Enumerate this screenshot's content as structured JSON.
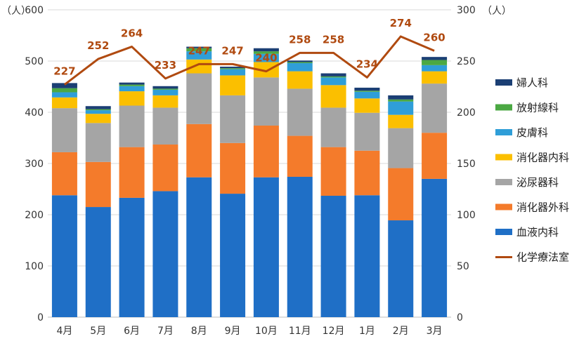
{
  "chart_data": {
    "type": "bar",
    "stacked": true,
    "categories": [
      "4月",
      "5月",
      "6月",
      "7月",
      "8月",
      "9月",
      "10月",
      "11月",
      "12月",
      "1月",
      "2月",
      "3月"
    ],
    "left_axis": {
      "unit": "（人）",
      "ticks": [
        0,
        100,
        200,
        300,
        400,
        500,
        600
      ],
      "ylim": [
        0,
        600
      ]
    },
    "right_axis": {
      "unit": "（人）",
      "ticks": [
        0,
        50,
        100,
        150,
        200,
        250,
        300
      ],
      "ylim": [
        0,
        300
      ]
    },
    "grid": true,
    "legend_position": "right",
    "series": [
      {
        "name": "血液内科",
        "color": "#1f6fc6",
        "values": [
          238,
          215,
          233,
          246,
          273,
          241,
          273,
          274,
          237,
          238,
          189,
          270
        ]
      },
      {
        "name": "消化器外科",
        "color": "#f47b2b",
        "values": [
          84,
          88,
          99,
          91,
          104,
          99,
          101,
          80,
          95,
          87,
          102,
          90
        ]
      },
      {
        "name": "泌尿器科",
        "color": "#a5a5a5",
        "values": [
          86,
          76,
          81,
          72,
          99,
          93,
          94,
          92,
          77,
          74,
          78,
          96
        ]
      },
      {
        "name": "消化器内科",
        "color": "#fbbf00",
        "values": [
          21,
          18,
          28,
          24,
          27,
          39,
          30,
          34,
          44,
          28,
          26,
          24
        ]
      },
      {
        "name": "皮膚科",
        "color": "#2f9ed8",
        "values": [
          10,
          7,
          10,
          11,
          16,
          12,
          16,
          16,
          15,
          13,
          26,
          12
        ]
      },
      {
        "name": "放射線科",
        "color": "#4ba843",
        "values": [
          8,
          2,
          3,
          2,
          6,
          2,
          5,
          2,
          2,
          2,
          4,
          10
        ]
      },
      {
        "name": "婦人科",
        "color": "#1b3f74",
        "values": [
          10,
          6,
          4,
          5,
          3,
          3,
          6,
          3,
          6,
          6,
          8,
          6
        ]
      }
    ],
    "line_series": {
      "name": "化学療法室",
      "color": "#b04a10",
      "axis": "right",
      "values": [
        227,
        252,
        264,
        233,
        247,
        247,
        240,
        258,
        258,
        234,
        274,
        260
      ]
    }
  }
}
